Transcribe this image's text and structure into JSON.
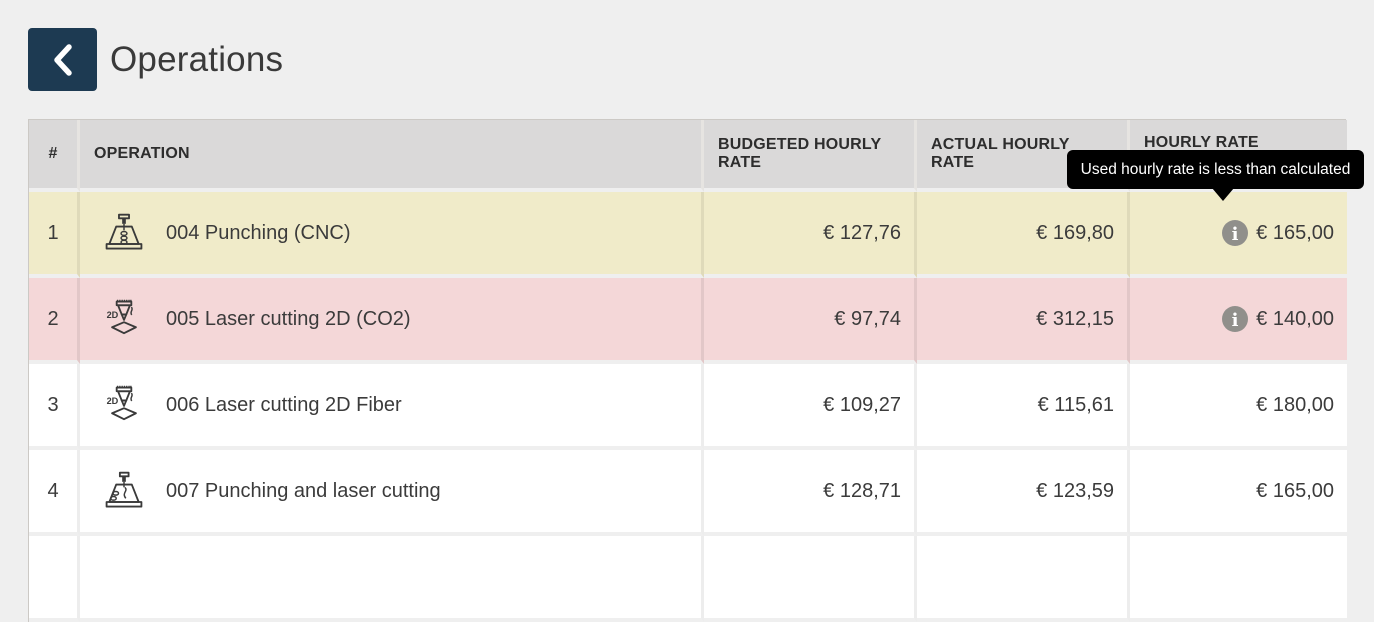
{
  "header": {
    "title": "Operations",
    "back_icon": "chevron-left-icon"
  },
  "tooltip": {
    "text": "Used hourly rate is less than calculated"
  },
  "table": {
    "columns": [
      {
        "key": "index",
        "label": "#"
      },
      {
        "key": "operation",
        "label": "OPERATION"
      },
      {
        "key": "budgeted",
        "label": "BUDGETED HOURLY RATE"
      },
      {
        "key": "actual",
        "label": "ACTUAL HOURLY RATE"
      },
      {
        "key": "hourly",
        "label": "HOURLY RATE"
      }
    ],
    "rows": [
      {
        "index": "1",
        "operation": "004 Punching (CNC)",
        "icon": "punching-icon",
        "budgeted": "€ 127,76",
        "actual": "€ 169,80",
        "hourly": "€ 165,00",
        "has_info": true,
        "highlight": "warning"
      },
      {
        "index": "2",
        "operation": "005 Laser cutting 2D (CO2)",
        "icon": "laser-2d-icon",
        "budgeted": "€ 97,74",
        "actual": "€ 312,15",
        "hourly": "€ 140,00",
        "has_info": true,
        "highlight": "danger"
      },
      {
        "index": "3",
        "operation": "006 Laser cutting 2D Fiber",
        "icon": "laser-2d-icon",
        "budgeted": "€ 109,27",
        "actual": "€ 115,61",
        "hourly": "€ 180,00",
        "has_info": false,
        "highlight": "none"
      },
      {
        "index": "4",
        "operation": "007 Punching and laser cutting",
        "icon": "punching-laser-icon",
        "budgeted": "€ 128,71",
        "actual": "€ 123,59",
        "hourly": "€ 165,00",
        "has_info": false,
        "highlight": "none"
      }
    ],
    "trailing_empty_row": true
  },
  "colors": {
    "page_bg": "#efefef",
    "accent_navy": "#1d3a52",
    "header_bg": "#dad9d9",
    "warning_row": "#f0ebc9",
    "danger_row": "#f4d7d8",
    "tooltip_bg": "#000000",
    "info_icon": "#908f8b",
    "text": "#3b3b3b"
  },
  "icons": {
    "back": "chevron-left-icon",
    "info": "info-icon",
    "row_icons": [
      "punching-icon",
      "laser-2d-icon",
      "punching-laser-icon"
    ]
  }
}
